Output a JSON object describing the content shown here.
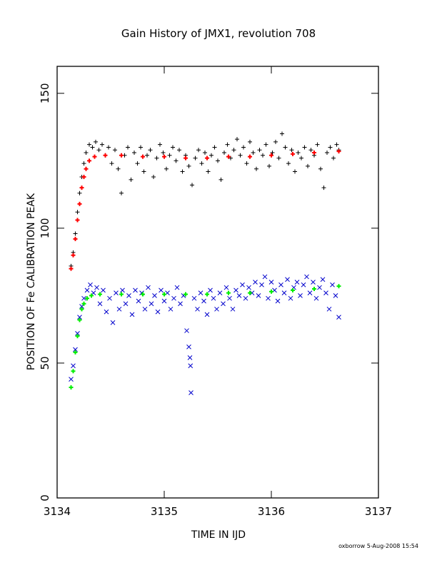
{
  "chart_data": {
    "type": "scatter",
    "title": "Gain History of JMX1, revolution 708",
    "xlabel": "TIME IN IJD",
    "ylabel": "POSITION OF Fe CALIBRATION PEAK",
    "xlim": [
      3134,
      3137
    ],
    "ylim": [
      0,
      160
    ],
    "xticks": [
      3134,
      3135,
      3136,
      3137
    ],
    "yticks": [
      0,
      50,
      100,
      150
    ],
    "grid": false,
    "footer": "oxborrow   5-Aug-2008 15:54",
    "x_start": 3134.13,
    "x_end": 3136.63,
    "series": [
      {
        "marker": "plus",
        "color": "#000000",
        "points": [
          [
            3134.13,
            86
          ],
          [
            3134.15,
            91
          ],
          [
            3134.17,
            98
          ],
          [
            3134.19,
            106
          ],
          [
            3134.21,
            113
          ],
          [
            3134.23,
            119
          ],
          [
            3134.25,
            124
          ],
          [
            3134.27,
            128
          ],
          [
            3134.3,
            131
          ],
          [
            3134.33,
            130
          ],
          [
            3134.36,
            132
          ],
          [
            3134.39,
            129
          ],
          [
            3134.42,
            131
          ],
          [
            3134.45,
            127
          ],
          [
            3134.48,
            130
          ],
          [
            3134.51,
            124
          ],
          [
            3134.54,
            129
          ],
          [
            3134.57,
            122
          ],
          [
            3134.6,
            113
          ],
          [
            3134.63,
            127
          ],
          [
            3134.66,
            130
          ],
          [
            3134.69,
            118
          ],
          [
            3134.72,
            128
          ],
          [
            3134.75,
            124
          ],
          [
            3134.78,
            130
          ],
          [
            3134.81,
            121
          ],
          [
            3134.84,
            127
          ],
          [
            3134.87,
            129
          ],
          [
            3134.9,
            119
          ],
          [
            3134.93,
            126
          ],
          [
            3134.96,
            131
          ],
          [
            3134.99,
            128
          ],
          [
            3135.02,
            122
          ],
          [
            3135.05,
            127
          ],
          [
            3135.08,
            130
          ],
          [
            3135.11,
            125
          ],
          [
            3135.14,
            129
          ],
          [
            3135.17,
            121
          ],
          [
            3135.2,
            127
          ],
          [
            3135.23,
            123
          ],
          [
            3135.26,
            116
          ],
          [
            3135.29,
            126
          ],
          [
            3135.32,
            129
          ],
          [
            3135.35,
            124
          ],
          [
            3135.38,
            128
          ],
          [
            3135.41,
            121
          ],
          [
            3135.44,
            127
          ],
          [
            3135.47,
            130
          ],
          [
            3135.5,
            125
          ],
          [
            3135.53,
            118
          ],
          [
            3135.56,
            128
          ],
          [
            3135.59,
            131
          ],
          [
            3135.62,
            126
          ],
          [
            3135.65,
            129
          ],
          [
            3135.68,
            133
          ],
          [
            3135.71,
            127
          ],
          [
            3135.74,
            130
          ],
          [
            3135.77,
            124
          ],
          [
            3135.8,
            132
          ],
          [
            3135.83,
            128
          ],
          [
            3135.86,
            122
          ],
          [
            3135.89,
            129
          ],
          [
            3135.92,
            127
          ],
          [
            3135.95,
            131
          ],
          [
            3135.98,
            123
          ],
          [
            3136.01,
            128
          ],
          [
            3136.04,
            132
          ],
          [
            3136.07,
            126
          ],
          [
            3136.1,
            135
          ],
          [
            3136.13,
            130
          ],
          [
            3136.16,
            124
          ],
          [
            3136.19,
            129
          ],
          [
            3136.22,
            121
          ],
          [
            3136.25,
            128
          ],
          [
            3136.28,
            126
          ],
          [
            3136.31,
            130
          ],
          [
            3136.34,
            123
          ],
          [
            3136.37,
            129
          ],
          [
            3136.4,
            127
          ],
          [
            3136.43,
            131
          ],
          [
            3136.46,
            122
          ],
          [
            3136.49,
            115
          ],
          [
            3136.52,
            128
          ],
          [
            3136.55,
            130
          ],
          [
            3136.58,
            126
          ],
          [
            3136.61,
            131
          ],
          [
            3136.63,
            129
          ]
        ]
      },
      {
        "marker": "plus",
        "color": "#ff0000",
        "points": [
          [
            3134.13,
            85
          ],
          [
            3134.15,
            90
          ],
          [
            3134.17,
            96
          ],
          [
            3134.19,
            103
          ],
          [
            3134.21,
            109
          ],
          [
            3134.23,
            115
          ],
          [
            3134.25,
            119
          ],
          [
            3134.27,
            122
          ],
          [
            3134.3,
            125
          ],
          [
            3134.35,
            126.5
          ],
          [
            3134.45,
            127
          ],
          [
            3134.6,
            127
          ],
          [
            3134.8,
            126.5
          ],
          [
            3135.0,
            126.5
          ],
          [
            3135.2,
            126
          ],
          [
            3135.4,
            126
          ],
          [
            3135.6,
            126.5
          ],
          [
            3135.8,
            126.5
          ],
          [
            3136.0,
            127
          ],
          [
            3136.2,
            127.5
          ],
          [
            3136.4,
            128
          ],
          [
            3136.63,
            128.5
          ]
        ]
      },
      {
        "marker": "cross",
        "color": "#0000cc",
        "points": [
          [
            3134.13,
            44
          ],
          [
            3134.15,
            49
          ],
          [
            3134.17,
            55
          ],
          [
            3134.19,
            61
          ],
          [
            3134.21,
            67
          ],
          [
            3134.23,
            71
          ],
          [
            3134.25,
            74
          ],
          [
            3134.28,
            77
          ],
          [
            3134.31,
            79
          ],
          [
            3134.34,
            76
          ],
          [
            3134.37,
            78
          ],
          [
            3134.4,
            72
          ],
          [
            3134.43,
            77
          ],
          [
            3134.46,
            69
          ],
          [
            3134.49,
            74
          ],
          [
            3134.52,
            65
          ],
          [
            3134.55,
            76
          ],
          [
            3134.58,
            70
          ],
          [
            3134.61,
            77
          ],
          [
            3134.64,
            72
          ],
          [
            3134.67,
            75
          ],
          [
            3134.7,
            68
          ],
          [
            3134.73,
            77
          ],
          [
            3134.76,
            73
          ],
          [
            3134.79,
            76
          ],
          [
            3134.82,
            70
          ],
          [
            3134.85,
            78
          ],
          [
            3134.88,
            72
          ],
          [
            3134.91,
            75
          ],
          [
            3134.94,
            69
          ],
          [
            3134.97,
            77
          ],
          [
            3135.0,
            73
          ],
          [
            3135.03,
            76
          ],
          [
            3135.06,
            70
          ],
          [
            3135.09,
            74
          ],
          [
            3135.12,
            78
          ],
          [
            3135.15,
            72
          ],
          [
            3135.18,
            75
          ],
          [
            3135.21,
            62
          ],
          [
            3135.23,
            56
          ],
          [
            3135.24,
            52
          ],
          [
            3135.245,
            49
          ],
          [
            3135.25,
            39
          ],
          [
            3135.28,
            74
          ],
          [
            3135.31,
            70
          ],
          [
            3135.34,
            76
          ],
          [
            3135.37,
            73
          ],
          [
            3135.4,
            68
          ],
          [
            3135.43,
            77
          ],
          [
            3135.46,
            74
          ],
          [
            3135.49,
            70
          ],
          [
            3135.52,
            76
          ],
          [
            3135.55,
            72
          ],
          [
            3135.58,
            78
          ],
          [
            3135.61,
            74
          ],
          [
            3135.64,
            70
          ],
          [
            3135.67,
            77
          ],
          [
            3135.7,
            75
          ],
          [
            3135.73,
            79
          ],
          [
            3135.76,
            74
          ],
          [
            3135.79,
            78
          ],
          [
            3135.82,
            76
          ],
          [
            3135.85,
            80
          ],
          [
            3135.88,
            75
          ],
          [
            3135.91,
            79
          ],
          [
            3135.94,
            82
          ],
          [
            3135.97,
            74
          ],
          [
            3136.0,
            80
          ],
          [
            3136.03,
            77
          ],
          [
            3136.06,
            73
          ],
          [
            3136.09,
            79
          ],
          [
            3136.12,
            76
          ],
          [
            3136.15,
            81
          ],
          [
            3136.18,
            74
          ],
          [
            3136.21,
            78
          ],
          [
            3136.24,
            80
          ],
          [
            3136.27,
            75
          ],
          [
            3136.3,
            79
          ],
          [
            3136.33,
            82
          ],
          [
            3136.36,
            76
          ],
          [
            3136.39,
            80
          ],
          [
            3136.42,
            74
          ],
          [
            3136.45,
            78
          ],
          [
            3136.48,
            81
          ],
          [
            3136.51,
            76
          ],
          [
            3136.54,
            70
          ],
          [
            3136.57,
            79
          ],
          [
            3136.6,
            75
          ],
          [
            3136.63,
            67
          ]
        ]
      },
      {
        "marker": "plus",
        "color": "#00ee00",
        "points": [
          [
            3134.13,
            41
          ],
          [
            3134.15,
            47
          ],
          [
            3134.17,
            54
          ],
          [
            3134.19,
            60
          ],
          [
            3134.21,
            66
          ],
          [
            3134.23,
            70
          ],
          [
            3134.25,
            72
          ],
          [
            3134.28,
            74
          ],
          [
            3134.32,
            75
          ],
          [
            3134.4,
            75.5
          ],
          [
            3134.6,
            75.5
          ],
          [
            3134.8,
            75.5
          ],
          [
            3135.0,
            75.5
          ],
          [
            3135.2,
            75.5
          ],
          [
            3135.4,
            75.5
          ],
          [
            3135.6,
            76
          ],
          [
            3135.8,
            76
          ],
          [
            3136.0,
            76.5
          ],
          [
            3136.2,
            77
          ],
          [
            3136.4,
            77.5
          ],
          [
            3136.63,
            78.5
          ]
        ]
      }
    ]
  }
}
